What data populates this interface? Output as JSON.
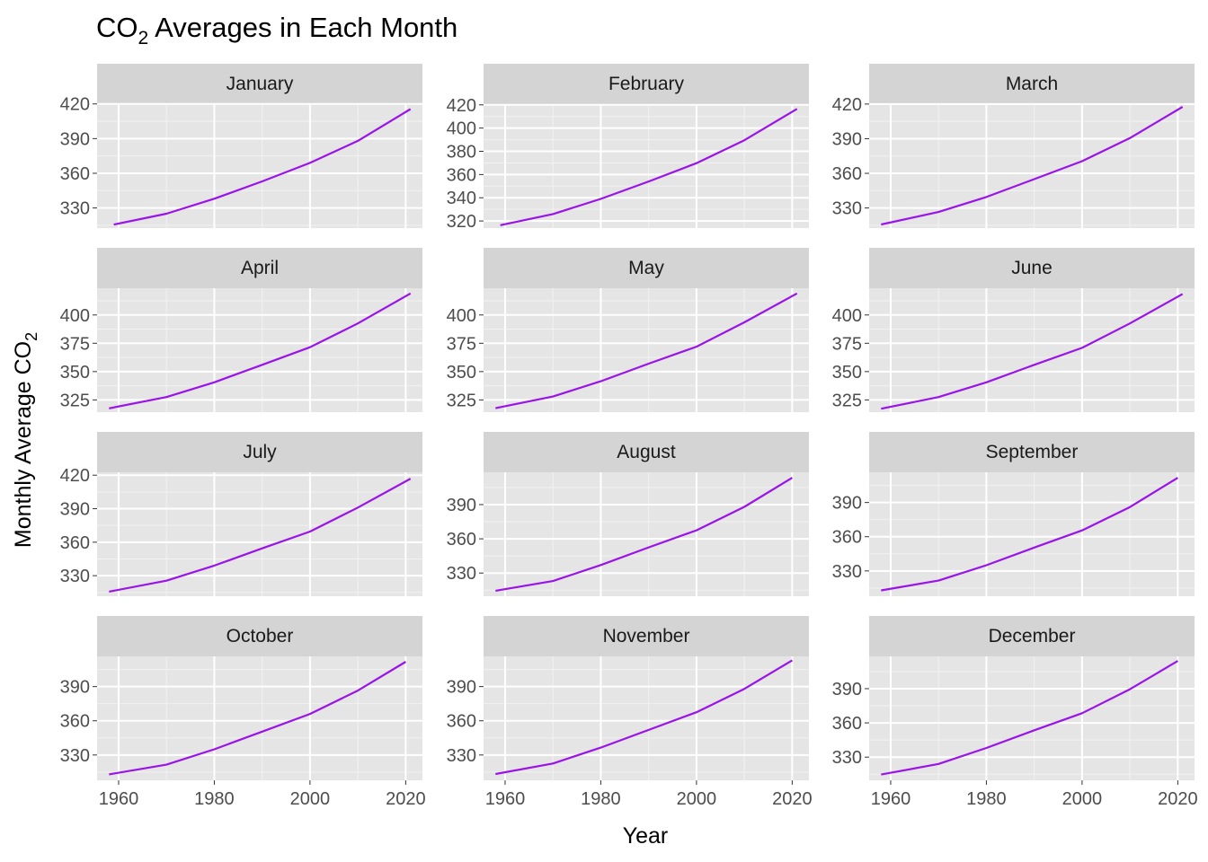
{
  "chart_data": {
    "type": "line",
    "title": "CO",
    "title_subscript": "2",
    "title_rest": " Averages in Each Month",
    "xlabel": "Year",
    "ylabel": "Monthly Average CO",
    "ylabel_subscript": "2",
    "facet_layout": "3 columns x 4 rows",
    "line_color": "#9a13ea",
    "panel_background": "#e5e5e5",
    "strip_background": "#d4d4d4",
    "grid": true,
    "xlim": [
      1955.5,
      2023.5
    ],
    "x_ticks": [
      "1960",
      "1980",
      "2000",
      "2020"
    ],
    "x_tick_values": [
      1960,
      1980,
      2000,
      2020
    ],
    "panels": [
      {
        "month": "January",
        "ylim": [
          312.6,
          419.8
        ],
        "y_ticks": [
          "330",
          "360",
          "390",
          "420"
        ],
        "y_tick_values": [
          330,
          360,
          390,
          420
        ],
        "series": {
          "x": [
            1959,
            1970,
            1980,
            1990,
            2000,
            2010,
            2021
          ],
          "values": [
            315.6,
            325.0,
            338.0,
            353.0,
            369.0,
            388.0,
            415.5
          ]
        }
      },
      {
        "month": "February",
        "ylim": [
          313.9,
          420.6
        ],
        "y_ticks": [
          "320",
          "340",
          "360",
          "380",
          "400",
          "420"
        ],
        "y_tick_values": [
          320,
          340,
          360,
          380,
          400,
          420
        ],
        "series": {
          "x": [
            1959,
            1970,
            1980,
            1990,
            2000,
            2010,
            2021
          ],
          "values": [
            316.4,
            326.0,
            339.0,
            354.0,
            369.8,
            389.5,
            416.5
          ]
        }
      },
      {
        "month": "March",
        "ylim": [
          312.6,
          419.9
        ],
        "y_ticks": [
          "330",
          "360",
          "390",
          "420"
        ],
        "y_tick_values": [
          330,
          360,
          390,
          420
        ],
        "series": {
          "x": [
            1958,
            1970,
            1980,
            1990,
            2000,
            2010,
            2021
          ],
          "values": [
            315.7,
            326.5,
            339.5,
            355.0,
            370.5,
            390.5,
            417.6
          ]
        }
      },
      {
        "month": "April",
        "ylim": [
          314.2,
          423.6
        ],
        "y_ticks": [
          "325",
          "350",
          "375",
          "400"
        ],
        "y_tick_values": [
          325,
          350,
          375,
          400
        ],
        "series": {
          "x": [
            1958,
            1970,
            1980,
            1990,
            2000,
            2010,
            2021
          ],
          "values": [
            317.5,
            327.5,
            340.5,
            356.0,
            371.5,
            392.5,
            419.0
          ]
        }
      },
      {
        "month": "May",
        "ylim": [
          314.2,
          423.6
        ],
        "y_ticks": [
          "325",
          "350",
          "375",
          "400"
        ],
        "y_tick_values": [
          325,
          350,
          375,
          400
        ],
        "series": {
          "x": [
            1958,
            1970,
            1980,
            1990,
            2000,
            2010,
            2021
          ],
          "values": [
            317.7,
            328.0,
            341.5,
            357.0,
            372.0,
            393.5,
            419.0
          ]
        }
      },
      {
        "month": "June",
        "ylim": [
          314.2,
          423.6
        ],
        "y_ticks": [
          "325",
          "350",
          "375",
          "400"
        ],
        "y_tick_values": [
          325,
          350,
          375,
          400
        ],
        "series": {
          "x": [
            1958,
            1970,
            1980,
            1990,
            2000,
            2010,
            2021
          ],
          "values": [
            317.2,
            327.5,
            340.5,
            356.0,
            371.0,
            392.5,
            418.5
          ]
        }
      },
      {
        "month": "July",
        "ylim": [
          311.6,
          422.6
        ],
        "y_ticks": [
          "330",
          "360",
          "390",
          "420"
        ],
        "y_tick_values": [
          330,
          360,
          390,
          420
        ],
        "series": {
          "x": [
            1958,
            1970,
            1980,
            1990,
            2000,
            2010,
            2021
          ],
          "values": [
            315.7,
            325.5,
            339.0,
            354.5,
            369.5,
            391.0,
            416.9
          ]
        }
      },
      {
        "month": "August",
        "ylim": [
          309.7,
          418.3
        ],
        "y_ticks": [
          "330",
          "360",
          "390"
        ],
        "y_tick_values": [
          330,
          360,
          390
        ],
        "series": {
          "x": [
            1958,
            1970,
            1980,
            1990,
            2000,
            2010,
            2020
          ],
          "values": [
            314.5,
            323.0,
            337.0,
            352.5,
            367.5,
            388.0,
            413.5
          ]
        }
      },
      {
        "month": "September",
        "ylim": [
          307.8,
          416.5
        ],
        "y_ticks": [
          "330",
          "360",
          "390"
        ],
        "y_tick_values": [
          330,
          360,
          390
        ],
        "series": {
          "x": [
            1958,
            1970,
            1980,
            1990,
            2000,
            2010,
            2020
          ],
          "values": [
            312.9,
            321.5,
            335.0,
            350.5,
            365.5,
            386.0,
            411.7
          ]
        }
      },
      {
        "month": "October",
        "ylim": [
          307.8,
          416.5
        ],
        "y_ticks": [
          "330",
          "360",
          "390"
        ],
        "y_tick_values": [
          330,
          360,
          390
        ],
        "series": {
          "x": [
            1958,
            1970,
            1980,
            1990,
            2000,
            2010,
            2020
          ],
          "values": [
            313.0,
            321.5,
            335.0,
            350.5,
            366.0,
            386.5,
            411.8
          ]
        }
      },
      {
        "month": "November",
        "ylim": [
          307.8,
          416.5
        ],
        "y_ticks": [
          "330",
          "360",
          "390"
        ],
        "y_tick_values": [
          330,
          360,
          390
        ],
        "series": {
          "x": [
            1958,
            1970,
            1980,
            1990,
            2000,
            2010,
            2020
          ],
          "values": [
            313.3,
            322.5,
            336.5,
            352.0,
            367.5,
            388.0,
            413.0
          ]
        }
      },
      {
        "month": "December",
        "ylim": [
          309.7,
          418.3
        ],
        "y_ticks": [
          "330",
          "360",
          "390"
        ],
        "y_tick_values": [
          330,
          360,
          390
        ],
        "series": {
          "x": [
            1958,
            1970,
            1980,
            1990,
            2000,
            2010,
            2020
          ],
          "values": [
            314.7,
            324.0,
            338.0,
            353.5,
            368.5,
            389.5,
            414.3
          ]
        }
      }
    ]
  }
}
